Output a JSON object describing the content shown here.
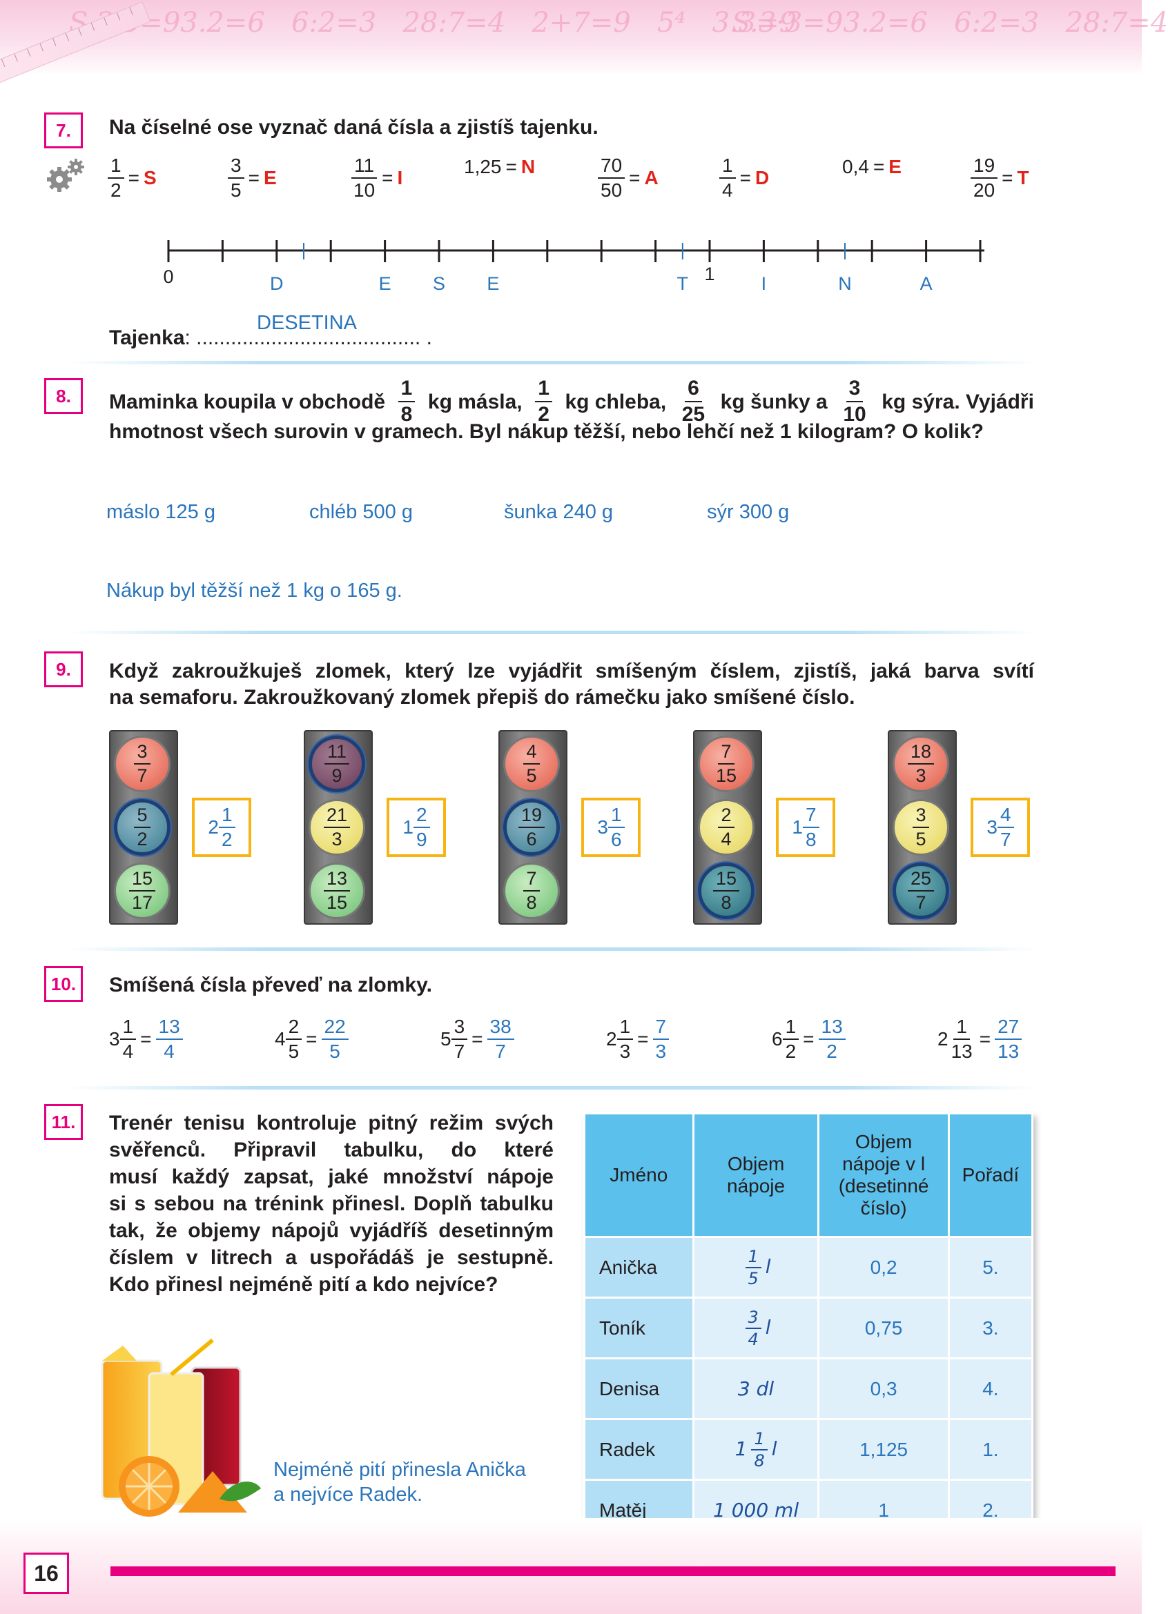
{
  "page_number": "16",
  "task7": {
    "number": "7.",
    "instruction": "Na číselné ose vyznač daná čísla a zjistíš tajenku.",
    "items": [
      {
        "num": "1",
        "den": "2",
        "letter": "S"
      },
      {
        "num": "3",
        "den": "5",
        "letter": "E"
      },
      {
        "num": "11",
        "den": "10",
        "letter": "I"
      },
      {
        "text": "1,25",
        "letter": "N"
      },
      {
        "num": "70",
        "den": "50",
        "letter": "A"
      },
      {
        "num": "1",
        "den": "4",
        "letter": "D"
      },
      {
        "text": "0,4",
        "letter": "E"
      },
      {
        "num": "19",
        "den": "20",
        "letter": "T"
      }
    ],
    "eq": "=",
    "axis_zero": "0",
    "axis_one": "1",
    "axis_letters": [
      "D",
      "E",
      "S",
      "E",
      "T",
      "I",
      "N",
      "A"
    ],
    "tajenka_label": "Tajenka",
    "tajenka_dots": ": ....................................... .",
    "tajenka_answer": "DESETINA"
  },
  "task8": {
    "number": "8.",
    "t1": "Maminka koupila v obchodě",
    "f1n": "1",
    "f1d": "8",
    "t2": "kg másla,",
    "f2n": "1",
    "f2d": "2",
    "t3": "kg chleba,",
    "f3n": "6",
    "f3d": "25",
    "t4": "kg šunky a",
    "f4n": "3",
    "f4d": "10",
    "t5": "kg sýra. Vyjádři",
    "line2": "hmotnost všech surovin v gramech. Byl nákup těžší, nebo lehčí než 1 kilogram? O kolik?",
    "answers": [
      "máslo 125 g",
      "chléb 500 g",
      "šunka 240 g",
      "sýr 300 g"
    ],
    "conclusion": "Nákup byl těžší než 1 kg o 165 g."
  },
  "task9": {
    "number": "9.",
    "line1": "Když zakroužkuješ zlomek, který lze vyjádřit smíšeným číslem, zjistíš, jaká barva svítí",
    "line2": "na semaforu. Zakroužkovaný zlomek přepiš do rámečku jako smíšené číslo.",
    "lights": [
      {
        "lamps": [
          [
            "3",
            "7"
          ],
          [
            "5",
            "2"
          ],
          [
            "15",
            "17"
          ]
        ],
        "circled": 1,
        "answer": {
          "w": "2",
          "n": "1",
          "d": "2"
        }
      },
      {
        "lamps": [
          [
            "11",
            "9"
          ],
          [
            "21",
            "3"
          ],
          [
            "13",
            "15"
          ]
        ],
        "circled": 0,
        "answer": {
          "w": "1",
          "n": "2",
          "d": "9"
        }
      },
      {
        "lamps": [
          [
            "4",
            "5"
          ],
          [
            "19",
            "6"
          ],
          [
            "7",
            "8"
          ]
        ],
        "circled": 1,
        "answer": {
          "w": "3",
          "n": "1",
          "d": "6"
        }
      },
      {
        "lamps": [
          [
            "7",
            "15"
          ],
          [
            "2",
            "4"
          ],
          [
            "15",
            "8"
          ]
        ],
        "circled": 2,
        "answer": {
          "w": "1",
          "n": "7",
          "d": "8"
        }
      },
      {
        "lamps": [
          [
            "18",
            "3"
          ],
          [
            "3",
            "5"
          ],
          [
            "25",
            "7"
          ]
        ],
        "circled": 2,
        "answer": {
          "w": "3",
          "n": "4",
          "d": "7"
        }
      }
    ]
  },
  "task10": {
    "number": "10.",
    "instruction": "Smíšená čísla převeď na zlomky.",
    "items": [
      {
        "w": "3",
        "n": "1",
        "d": "4",
        "an": "13",
        "ad": "4"
      },
      {
        "w": "4",
        "n": "2",
        "d": "5",
        "an": "22",
        "ad": "5"
      },
      {
        "w": "5",
        "n": "3",
        "d": "7",
        "an": "38",
        "ad": "7"
      },
      {
        "w": "2",
        "n": "1",
        "d": "3",
        "an": "7",
        "ad": "3"
      },
      {
        "w": "6",
        "n": "1",
        "d": "2",
        "an": "13",
        "ad": "2"
      },
      {
        "w": "2",
        "n": "1",
        "d": "13",
        "an": "27",
        "ad": "13"
      }
    ]
  },
  "task11": {
    "number": "11.",
    "lines": [
      "Trenér tenisu kontroluje pitný režim svých",
      "svěřenců. Připravil tabulku, do které",
      "musí každý zapsat, jaké množství nápoje",
      "si s sebou na trénink přinesl. Doplň tabulku",
      "tak, že objemy nápojů vyjádříš desetinným",
      "číslem v litrech a uspořádáš je sestupně."
    ],
    "last_line": "Kdo přinesl nejméně pití a kdo nejvíce?",
    "table": {
      "headers": [
        "Jméno",
        "Objem nápoje",
        "Objem nápoje v l (desetinné číslo)",
        "Pořadí"
      ],
      "rows": [
        {
          "name": "Anička",
          "vol_w": "",
          "vol_n": "1",
          "vol_d": "5",
          "vol_unit": "l",
          "dec": "0,2",
          "order": "5."
        },
        {
          "name": "Toník",
          "vol_w": "",
          "vol_n": "3",
          "vol_d": "4",
          "vol_unit": "l",
          "dec": "0,75",
          "order": "3."
        },
        {
          "name": "Denisa",
          "vol_text": "3 dl",
          "dec": "0,3",
          "order": "4."
        },
        {
          "name": "Radek",
          "vol_w": "1",
          "vol_n": "1",
          "vol_d": "8",
          "vol_unit": "l",
          "dec": "1,125",
          "order": "1."
        },
        {
          "name": "Matěj",
          "vol_text": "1 000 ml",
          "dec": "1",
          "order": "2."
        }
      ]
    },
    "answer_line1": "Nejméně pití přinesla Anička",
    "answer_line2": "a nejvíce Radek."
  },
  "colors": {
    "accent": "#e6007e",
    "answer_blue": "#2a75bb",
    "letter_red": "#e2231a",
    "table_header": "#5bc0eb",
    "box_yellow": "#f7b515"
  }
}
